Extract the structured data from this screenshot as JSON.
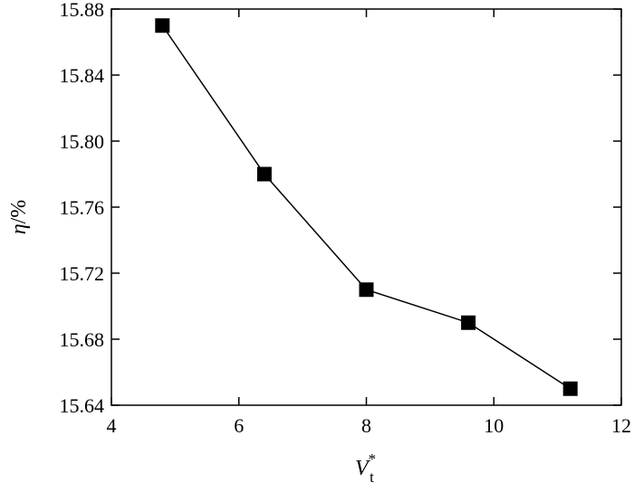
{
  "chart_data": {
    "type": "line",
    "title": "",
    "x": [
      4.8,
      6.4,
      8.0,
      9.6,
      11.2
    ],
    "series": [
      {
        "values": [
          15.87,
          15.78,
          15.71,
          15.69,
          15.65
        ]
      }
    ],
    "xlim": [
      4,
      12
    ],
    "ylim": [
      15.64,
      15.88
    ],
    "xticks": [
      4,
      6,
      8,
      10,
      12
    ],
    "xtick_labels": [
      "4",
      "6",
      "8",
      "10",
      "12"
    ],
    "yticks": [
      15.64,
      15.68,
      15.72,
      15.76,
      15.8,
      15.84,
      15.88
    ],
    "ytick_labels": [
      "15.64",
      "15.68",
      "15.72",
      "15.76",
      "15.80",
      "15.84",
      "15.88"
    ],
    "xlabel": {
      "main": "V",
      "sup": "*",
      "sub": "t"
    },
    "ylabel": {
      "symbol": "η",
      "unit": "/%"
    },
    "grid": false,
    "marker": "square",
    "color": "#000000"
  }
}
